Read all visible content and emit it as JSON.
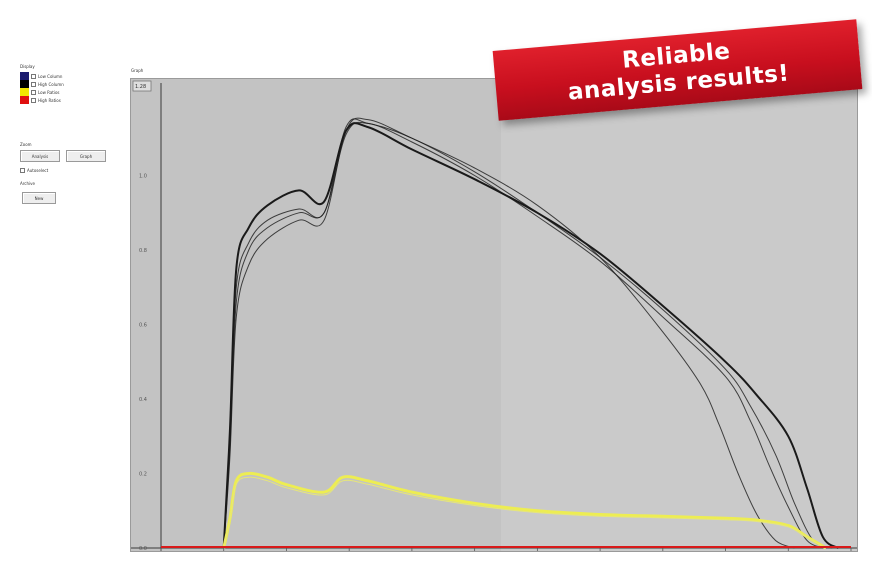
{
  "banner": {
    "line1": "Reliable",
    "line2": "analysis results!"
  },
  "panel": {
    "display_label": "Display",
    "legend": [
      {
        "label": "Low Column",
        "color": "#1a1a6e",
        "checked": true
      },
      {
        "label": "High Column",
        "color": "#000000",
        "checked": true
      },
      {
        "label": "Low Ratios",
        "color": "#f2e600",
        "checked": true
      },
      {
        "label": "High Ratios",
        "color": "#e01010",
        "checked": true
      }
    ],
    "zoom_label": "Zoom",
    "analysis_btn": "Analysis",
    "graph_btn": "Graph",
    "autoselect_label": "Autoselect",
    "archive_label": "Archive",
    "new_btn": "New"
  },
  "graph": {
    "title": "Graph",
    "readout": "1.28",
    "colors": {
      "background": "#c3c3c3",
      "curve": "#1a1a1a",
      "ratio": "#eded52",
      "baseline": "#d91a1a"
    }
  },
  "chart_data": {
    "type": "line",
    "title": "",
    "xlabel": "",
    "ylabel": "",
    "xlim": [
      0,
      11
    ],
    "ylim": [
      0,
      1.2
    ],
    "grid": false,
    "y_ticks": [
      "1.0",
      "0.8",
      "0.6",
      "0.4",
      "0.2",
      "0.0"
    ],
    "series": [
      {
        "kind": "main",
        "x": [
          1,
          1.1,
          1.2,
          1.4,
          1.7,
          2.2,
          2.6,
          2.95,
          3.3,
          4,
          5,
          6,
          7,
          8,
          9,
          9.5,
          10,
          10.3,
          10.55,
          10.8
        ],
        "y": [
          0,
          0.32,
          0.75,
          0.86,
          0.92,
          0.96,
          0.93,
          1.12,
          1.13,
          1.07,
          0.99,
          0.9,
          0.79,
          0.65,
          0.5,
          0.41,
          0.3,
          0.16,
          0.03,
          0
        ]
      },
      {
        "kind": "main",
        "x": [
          1,
          1.1,
          1.2,
          1.4,
          1.7,
          2.2,
          2.6,
          2.95,
          3.3,
          4,
          5,
          6,
          7,
          8,
          9,
          9.4,
          9.8,
          10.1,
          10.4,
          10.7
        ],
        "y": [
          0,
          0.3,
          0.7,
          0.82,
          0.88,
          0.91,
          0.9,
          1.13,
          1.14,
          1.1,
          1.01,
          0.9,
          0.78,
          0.64,
          0.48,
          0.38,
          0.25,
          0.12,
          0.02,
          0
        ]
      },
      {
        "kind": "main",
        "x": [
          1,
          1.1,
          1.2,
          1.4,
          1.7,
          2.2,
          2.6,
          2.95,
          3.3,
          4,
          5,
          6,
          7,
          8,
          9,
          9.4,
          9.7,
          10,
          10.3,
          10.6
        ],
        "y": [
          0,
          0.27,
          0.66,
          0.8,
          0.86,
          0.9,
          0.9,
          1.11,
          1.14,
          1.09,
          1,
          0.89,
          0.77,
          0.62,
          0.46,
          0.34,
          0.22,
          0.11,
          0.02,
          0
        ]
      },
      {
        "kind": "main",
        "x": [
          1,
          1.1,
          1.2,
          1.4,
          1.7,
          2.2,
          2.6,
          2.95,
          3.3,
          4,
          5,
          6,
          7,
          8,
          8.6,
          8.9,
          9.2,
          9.5,
          9.8,
          10.1
        ],
        "y": [
          0,
          0.25,
          0.62,
          0.76,
          0.83,
          0.88,
          0.88,
          1.12,
          1.15,
          1.1,
          1.02,
          0.92,
          0.78,
          0.58,
          0.44,
          0.33,
          0.2,
          0.09,
          0.02,
          0
        ]
      },
      {
        "kind": "ratio",
        "x": [
          1,
          1.1,
          1.2,
          1.4,
          1.7,
          2,
          2.6,
          2.9,
          3.3,
          4,
          5,
          6,
          7,
          8,
          9,
          9.5,
          10,
          10.3,
          10.6
        ],
        "y": [
          0,
          0.08,
          0.18,
          0.2,
          0.19,
          0.17,
          0.15,
          0.19,
          0.18,
          0.15,
          0.12,
          0.1,
          0.09,
          0.085,
          0.08,
          0.075,
          0.06,
          0.03,
          0
        ]
      },
      {
        "kind": "baseline",
        "x": [
          0,
          11
        ],
        "y": [
          0,
          0
        ]
      }
    ]
  }
}
